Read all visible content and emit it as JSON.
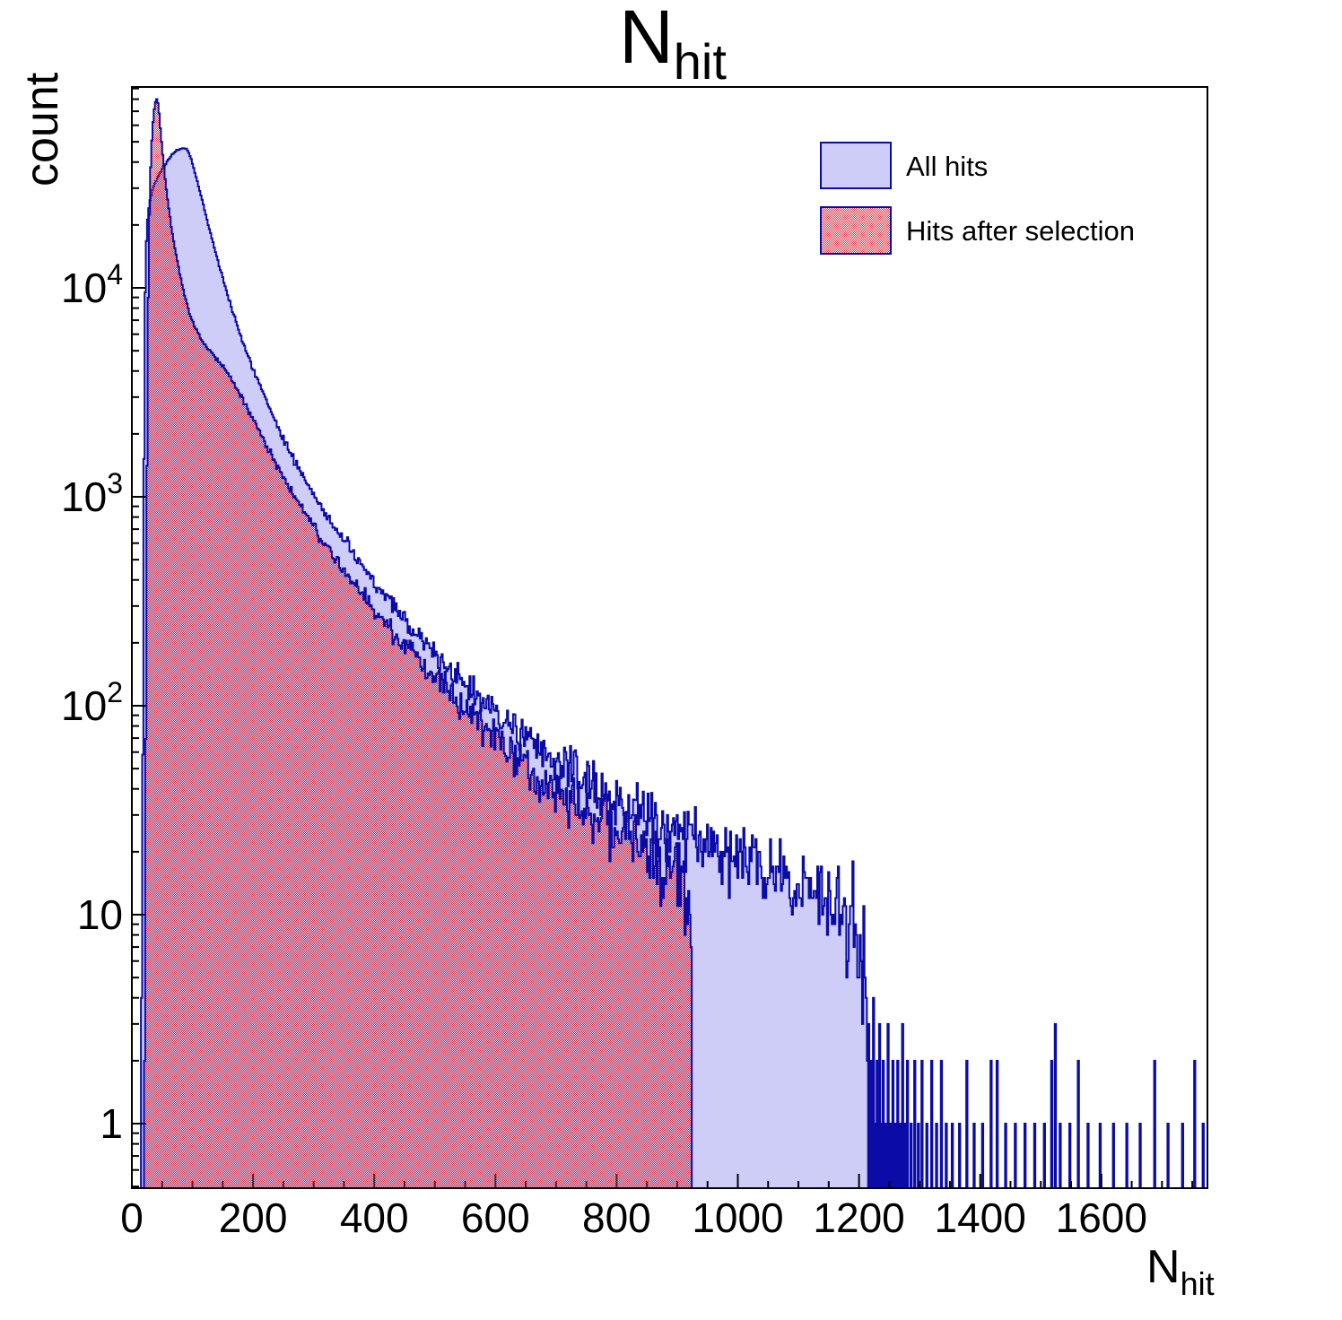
{
  "title": {
    "main": "N",
    "sub": "hit"
  },
  "y_axis": {
    "title": "count",
    "tick_labels": [
      {
        "mantissa": "1",
        "exp": "",
        "value": 1
      },
      {
        "mantissa": "10",
        "exp": "",
        "value": 10
      },
      {
        "mantissa": "10",
        "exp": "2",
        "value": 100
      },
      {
        "mantissa": "10",
        "exp": "3",
        "value": 1000
      },
      {
        "mantissa": "10",
        "exp": "4",
        "value": 10000
      }
    ]
  },
  "x_axis": {
    "title_main": "N",
    "title_sub": "hit",
    "tick_labels": [
      0,
      200,
      400,
      600,
      800,
      1000,
      1200,
      1400,
      1600
    ],
    "minor_step": 50,
    "major_step": 200
  },
  "legend": {
    "entries": [
      {
        "label": "All hits",
        "style": "solid"
      },
      {
        "label": "Hits after selection",
        "style": "hatched"
      }
    ]
  },
  "colors": {
    "line_navy": "#0b0ba8",
    "fill_lavender": "#cdcdf7",
    "hatch_red": "#d42a3a",
    "axis_black": "#000000",
    "background": "#ffffff"
  },
  "chart_data": {
    "type": "bar",
    "subtype": "step-histogram-overlay",
    "title": "N_hit",
    "xlabel": "N_hit",
    "ylabel": "count",
    "y_scale": "log",
    "x_range": [
      0,
      1775
    ],
    "y_range": [
      0.5,
      93000
    ],
    "bin_width": 2,
    "grid": false,
    "legend_position": "top-right",
    "series": [
      {
        "name": "All hits",
        "peak": {
          "x": 88,
          "count": 46600
        },
        "end_x": 1214,
        "envelope": [
          [
            15,
            0.7
          ],
          [
            16,
            3
          ],
          [
            17,
            12
          ],
          [
            18,
            60
          ],
          [
            19,
            350
          ],
          [
            20,
            1500
          ],
          [
            21,
            4500
          ],
          [
            22,
            9500
          ],
          [
            23,
            14500
          ],
          [
            25,
            19500
          ],
          [
            27,
            23000
          ],
          [
            30,
            26500
          ],
          [
            34,
            29500
          ],
          [
            38,
            31800
          ],
          [
            43,
            34000
          ],
          [
            48,
            36200
          ],
          [
            54,
            38600
          ],
          [
            60,
            41000
          ],
          [
            67,
            43600
          ],
          [
            74,
            45400
          ],
          [
            80,
            46200
          ],
          [
            86,
            46600
          ],
          [
            90,
            46300
          ],
          [
            94,
            44300
          ],
          [
            98,
            41200
          ],
          [
            102,
            37500
          ],
          [
            107,
            33200
          ],
          [
            112,
            29200
          ],
          [
            118,
            25000
          ],
          [
            124,
            21300
          ],
          [
            131,
            17700
          ],
          [
            138,
            14800
          ],
          [
            146,
            12200
          ],
          [
            154,
            10100
          ],
          [
            163,
            8300
          ],
          [
            172,
            6900
          ],
          [
            182,
            5650
          ],
          [
            192,
            4700
          ],
          [
            203,
            3900
          ],
          [
            215,
            3200
          ],
          [
            228,
            2600
          ],
          [
            242,
            2120
          ],
          [
            257,
            1730
          ],
          [
            273,
            1410
          ],
          [
            290,
            1150
          ],
          [
            308,
            940
          ],
          [
            327,
            770
          ],
          [
            347,
            630
          ],
          [
            369,
            513
          ],
          [
            392,
            418
          ],
          [
            416,
            340
          ],
          [
            441,
            277
          ],
          [
            468,
            224
          ],
          [
            496,
            182
          ],
          [
            525,
            149
          ],
          [
            556,
            121
          ],
          [
            588,
            99
          ],
          [
            622,
            81
          ],
          [
            657,
            67
          ],
          [
            694,
            55.5
          ],
          [
            732,
            46.5
          ],
          [
            771,
            39.5
          ],
          [
            812,
            34
          ],
          [
            854,
            29.5
          ],
          [
            897,
            25.5
          ],
          [
            941,
            22.5
          ],
          [
            986,
            20
          ],
          [
            1032,
            17.5
          ],
          [
            1078,
            15
          ],
          [
            1120,
            13
          ],
          [
            1155,
            11
          ],
          [
            1182,
            9.5
          ],
          [
            1200,
            8
          ],
          [
            1209,
            6
          ],
          [
            1214,
            4.5
          ]
        ],
        "sparse_spikes": [
          [
            1215,
            3
          ],
          [
            1217,
            1
          ],
          [
            1219,
            2
          ],
          [
            1223,
            4
          ],
          [
            1225,
            1
          ],
          [
            1229,
            2
          ],
          [
            1233,
            3
          ],
          [
            1235,
            1
          ],
          [
            1239,
            2
          ],
          [
            1243,
            1
          ],
          [
            1247,
            3
          ],
          [
            1251,
            1
          ],
          [
            1255,
            2
          ],
          [
            1259,
            1
          ],
          [
            1263,
            2
          ],
          [
            1267,
            1
          ],
          [
            1271,
            3
          ],
          [
            1275,
            1
          ],
          [
            1279,
            2
          ],
          [
            1285,
            1
          ],
          [
            1291,
            2
          ],
          [
            1297,
            1
          ],
          [
            1303,
            2
          ],
          [
            1311,
            1
          ],
          [
            1319,
            2
          ],
          [
            1327,
            1
          ],
          [
            1335,
            2
          ],
          [
            1343,
            1
          ],
          [
            1353,
            1
          ],
          [
            1365,
            1
          ],
          [
            1377,
            2
          ],
          [
            1389,
            1
          ],
          [
            1403,
            1
          ],
          [
            1417,
            2
          ],
          [
            1427,
            2
          ],
          [
            1441,
            1
          ],
          [
            1457,
            1
          ],
          [
            1473,
            1
          ],
          [
            1489,
            1
          ],
          [
            1505,
            1
          ],
          [
            1517,
            2
          ],
          [
            1523,
            3
          ],
          [
            1531,
            1
          ],
          [
            1547,
            1
          ],
          [
            1561,
            2
          ],
          [
            1577,
            1
          ],
          [
            1597,
            1
          ],
          [
            1619,
            1
          ],
          [
            1641,
            1
          ],
          [
            1663,
            1
          ],
          [
            1687,
            2
          ],
          [
            1709,
            1
          ],
          [
            1733,
            1
          ],
          [
            1753,
            2
          ],
          [
            1767,
            1
          ]
        ]
      },
      {
        "name": "Hits after selection",
        "peak": {
          "x": 41,
          "count": 80200
        },
        "end_x": 924,
        "envelope": [
          [
            20,
            0.7
          ],
          [
            21,
            3
          ],
          [
            22,
            14
          ],
          [
            23,
            70
          ],
          [
            24,
            350
          ],
          [
            25,
            1400
          ],
          [
            26,
            4200
          ],
          [
            27,
            9000
          ],
          [
            28,
            15500
          ],
          [
            29,
            22500
          ],
          [
            30,
            30000
          ],
          [
            31,
            37500
          ],
          [
            32,
            44500
          ],
          [
            33,
            51000
          ],
          [
            34,
            57000
          ],
          [
            35,
            62500
          ],
          [
            36,
            67500
          ],
          [
            37,
            71500
          ],
          [
            38,
            75000
          ],
          [
            39,
            77800
          ],
          [
            40,
            79600
          ],
          [
            41,
            80200
          ],
          [
            42,
            79200
          ],
          [
            43,
            76600
          ],
          [
            44,
            73000
          ],
          [
            45,
            68500
          ],
          [
            46,
            63500
          ],
          [
            47,
            58500
          ],
          [
            48,
            54000
          ],
          [
            50,
            46500
          ],
          [
            52,
            40500
          ],
          [
            55,
            33500
          ],
          [
            58,
            28200
          ],
          [
            61,
            24000
          ],
          [
            65,
            19800
          ],
          [
            70,
            16000
          ],
          [
            76,
            12900
          ],
          [
            82,
            10700
          ],
          [
            88,
            9000
          ],
          [
            95,
            7600
          ],
          [
            102,
            6700
          ],
          [
            110,
            6000
          ],
          [
            118,
            5500
          ],
          [
            126,
            5100
          ],
          [
            134,
            4800
          ],
          [
            142,
            4500
          ],
          [
            150,
            4250
          ],
          [
            158,
            3900
          ],
          [
            166,
            3550
          ],
          [
            175,
            3200
          ],
          [
            185,
            2850
          ],
          [
            196,
            2500
          ],
          [
            208,
            2130
          ],
          [
            221,
            1790
          ],
          [
            235,
            1500
          ],
          [
            250,
            1250
          ],
          [
            266,
            1040
          ],
          [
            283,
            860
          ],
          [
            301,
            710
          ],
          [
            320,
            590
          ],
          [
            340,
            485
          ],
          [
            361,
            400
          ],
          [
            384,
            330
          ],
          [
            408,
            272
          ],
          [
            433,
            222
          ],
          [
            459,
            182
          ],
          [
            486,
            150
          ],
          [
            515,
            122
          ],
          [
            545,
            100
          ],
          [
            576,
            82
          ],
          [
            608,
            67
          ],
          [
            641,
            55
          ],
          [
            675,
            46
          ],
          [
            710,
            38
          ],
          [
            746,
            32
          ],
          [
            783,
            27
          ],
          [
            821,
            23
          ],
          [
            860,
            19.5
          ],
          [
            894,
            17
          ],
          [
            908,
            15
          ],
          [
            916,
            12
          ],
          [
            921,
            9
          ],
          [
            924,
            7
          ]
        ],
        "sparse_spikes": []
      }
    ]
  }
}
